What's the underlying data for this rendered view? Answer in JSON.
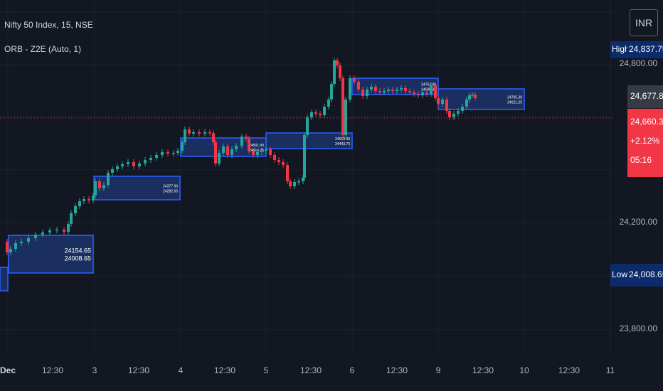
{
  "header": {
    "symbol_title": "Nifty 50 Index, 15, NSE",
    "indicator_title": "ORB - Z2E (Auto, 1)"
  },
  "currency_button": "INR",
  "price_axis": {
    "ticks": [
      "24,800.00",
      "24,200.00",
      "23,800.00"
    ],
    "high_tag": {
      "label": "High",
      "value": "24,837.75"
    },
    "low_tag": {
      "label": "Low",
      "value": "24,008.65"
    },
    "prev_value": "24,677.80",
    "last_price": {
      "value": "24,660.30",
      "change": "+2.12%",
      "countdown": "05:16"
    }
  },
  "time_axis": {
    "ticks": [
      {
        "label": "Dec",
        "bold": true
      },
      {
        "label": "12:30",
        "bold": false
      },
      {
        "label": "3",
        "bold": false
      },
      {
        "label": "12:30",
        "bold": false
      },
      {
        "label": "4",
        "bold": false
      },
      {
        "label": "12:30",
        "bold": false
      },
      {
        "label": "5",
        "bold": false
      },
      {
        "label": "12:30",
        "bold": false
      },
      {
        "label": "6",
        "bold": false
      },
      {
        "label": "12:30",
        "bold": false
      },
      {
        "label": "9",
        "bold": false
      },
      {
        "label": "12:30",
        "bold": false
      },
      {
        "label": "10",
        "bold": false
      },
      {
        "label": "12:30",
        "bold": false
      },
      {
        "label": "11",
        "bold": false
      }
    ]
  },
  "colors": {
    "up": "#26a69a",
    "down": "#f23645",
    "range_fill": "#1e3a7a",
    "range_border": "#2962ff",
    "tag_bg": "#0c2b6b",
    "last_price_bg": "#f23645",
    "grid": "#1e222d"
  },
  "opening_ranges": [
    {
      "day": "Dec 2",
      "high": "24154.65",
      "low": "24008.65"
    },
    {
      "day": "Dec 3",
      "high": "24377.90",
      "low": "24282.65"
    },
    {
      "day": "Dec 4",
      "high": "24501.90",
      "low": "24414.25"
    },
    {
      "day": "Dec 5",
      "high": "24519.40",
      "low": "24443.70"
    },
    {
      "day": "Dec 6",
      "high": "24751.90",
      "low": "24695.30"
    },
    {
      "day": "Dec 9",
      "high": "24705.30",
      "low": "24621.25"
    }
  ]
}
